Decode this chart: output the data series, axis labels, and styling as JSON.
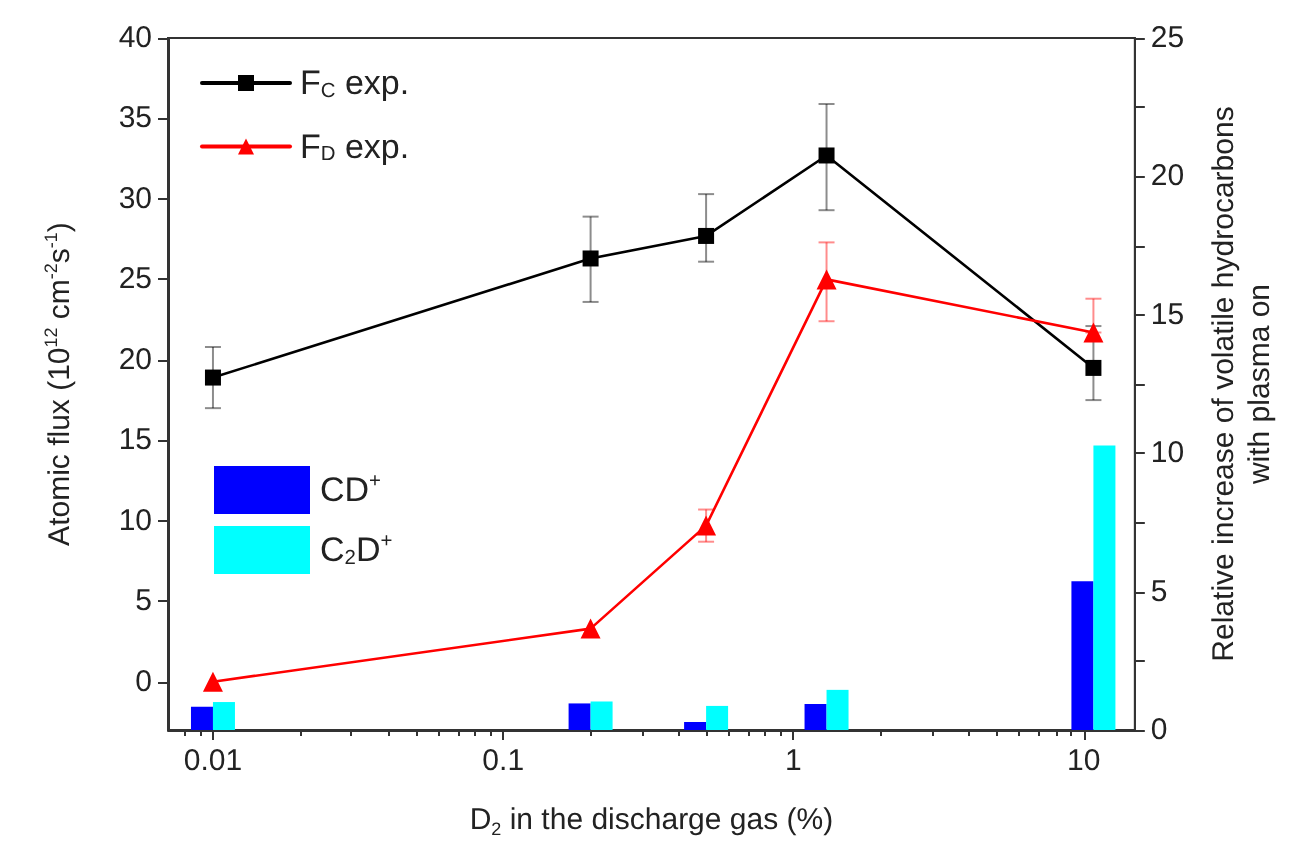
{
  "chart_data": {
    "type": "line",
    "xlabel": "D$_{2}$ in the discharge gas (%)",
    "ylabel": "Atomic flux (10$^{12}$ cm$^{-2}$s$^{-1}$)",
    "y2label": "Relative increase of volatile hydrocarbons\nwith plasma on",
    "x": [
      0.01,
      0.2,
      0.5,
      1.3,
      10.8
    ],
    "log": "x",
    "xlim": [
      0.007,
      15
    ],
    "xticks": [
      0.01,
      0.1,
      1,
      10
    ],
    "ylim": [
      -3,
      40
    ],
    "yticks": [
      0,
      5,
      10,
      15,
      20,
      25,
      30,
      35,
      40
    ],
    "y2lim": [
      0,
      25
    ],
    "y2ticks": [
      0,
      {
        "value": 2.5,
        "label": null
      },
      5,
      {
        "value": 7.5,
        "label": null
      },
      10,
      {
        "value": 12.5,
        "label": null
      },
      15,
      {
        "value": 17.5,
        "label": null
      },
      20,
      {
        "value": 22.5,
        "label": null
      },
      25
    ],
    "legend": "top left",
    "grid": false,
    "series": [
      {
        "name": "F$_{C}$ exp.",
        "color": "#000000",
        "marker": "square",
        "values": [
          18.9,
          26.3,
          27.7,
          32.7,
          19.5
        ],
        "errors": [
          [
            17.0,
            20.8
          ],
          [
            23.6,
            28.9
          ],
          [
            26.1,
            30.3
          ],
          [
            29.3,
            35.9
          ],
          [
            17.5,
            22.1
          ]
        ]
      },
      {
        "name": "F$_{D}$ exp.",
        "color": "#ff0000",
        "marker": "triangle",
        "values": [
          0,
          3.3,
          9.7,
          25.0,
          21.7
        ],
        "errors": [
          null,
          null,
          [
            8.7,
            10.7
          ],
          [
            22.4,
            27.3
          ],
          [
            21.7,
            23.8
          ]
        ]
      },
      {
        "name": "CD$^{+}$",
        "type": "bar",
        "axis": "y2",
        "color": "#0000ff",
        "values": [
          0.84,
          0.96,
          0.29,
          0.94,
          5.37
        ]
      },
      {
        "name": "C$_{2}$D$^{+}$",
        "type": "bar",
        "axis": "y2",
        "color": "#00ffff",
        "values": [
          1.01,
          1.03,
          0.87,
          1.45,
          10.28
        ]
      }
    ]
  }
}
